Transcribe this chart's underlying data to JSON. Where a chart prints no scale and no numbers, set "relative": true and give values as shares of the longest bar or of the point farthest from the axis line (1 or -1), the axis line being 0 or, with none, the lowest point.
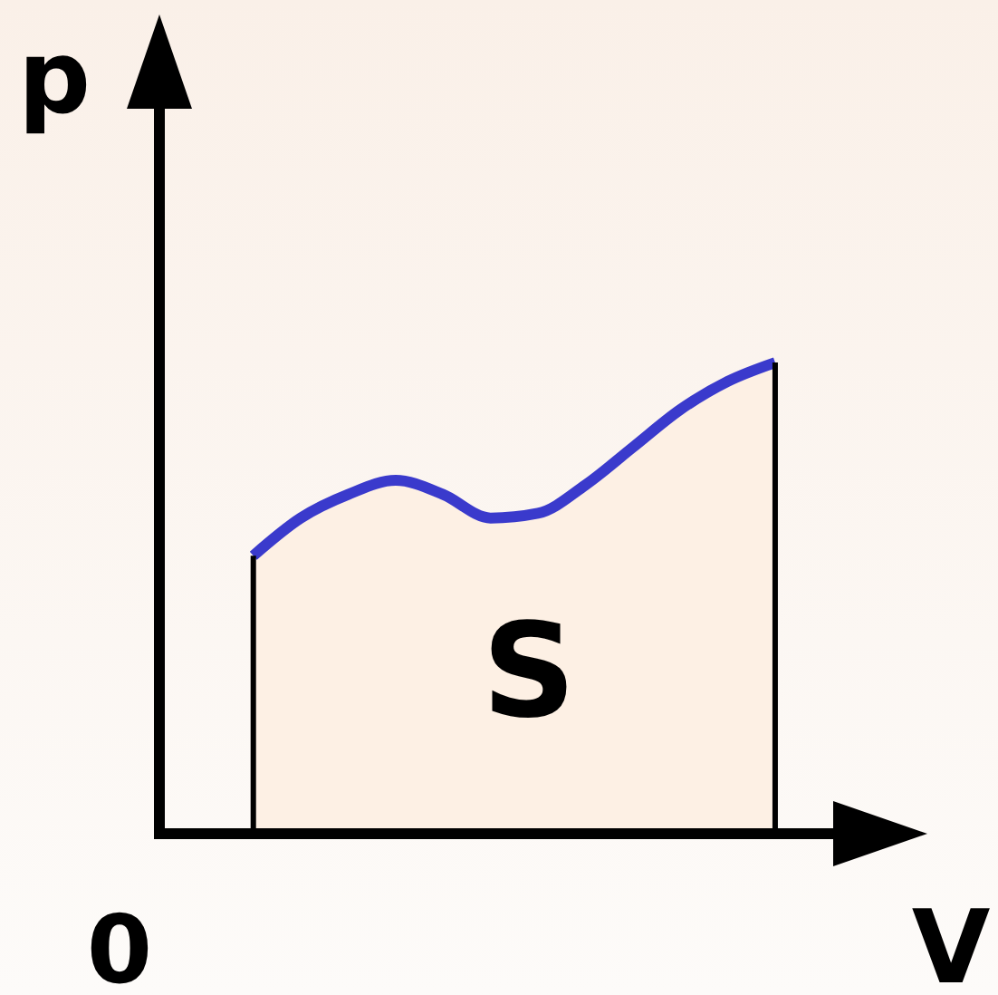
{
  "chart_data": {
    "type": "area",
    "relative": true,
    "xlabel": "V",
    "ylabel": "p",
    "annotations": [
      "S",
      "0"
    ],
    "categories": [
      null,
      null,
      null,
      null,
      null,
      null,
      null,
      null,
      null,
      null,
      null,
      null
    ],
    "series": [
      {
        "color": "#3a3acc",
        "values": [
          0.59,
          0.67,
          0.72,
          0.75,
          0.72,
          0.67,
          0.68,
          0.74,
          0.82,
          0.9,
          0.96,
          1
        ]
      }
    ]
  }
}
